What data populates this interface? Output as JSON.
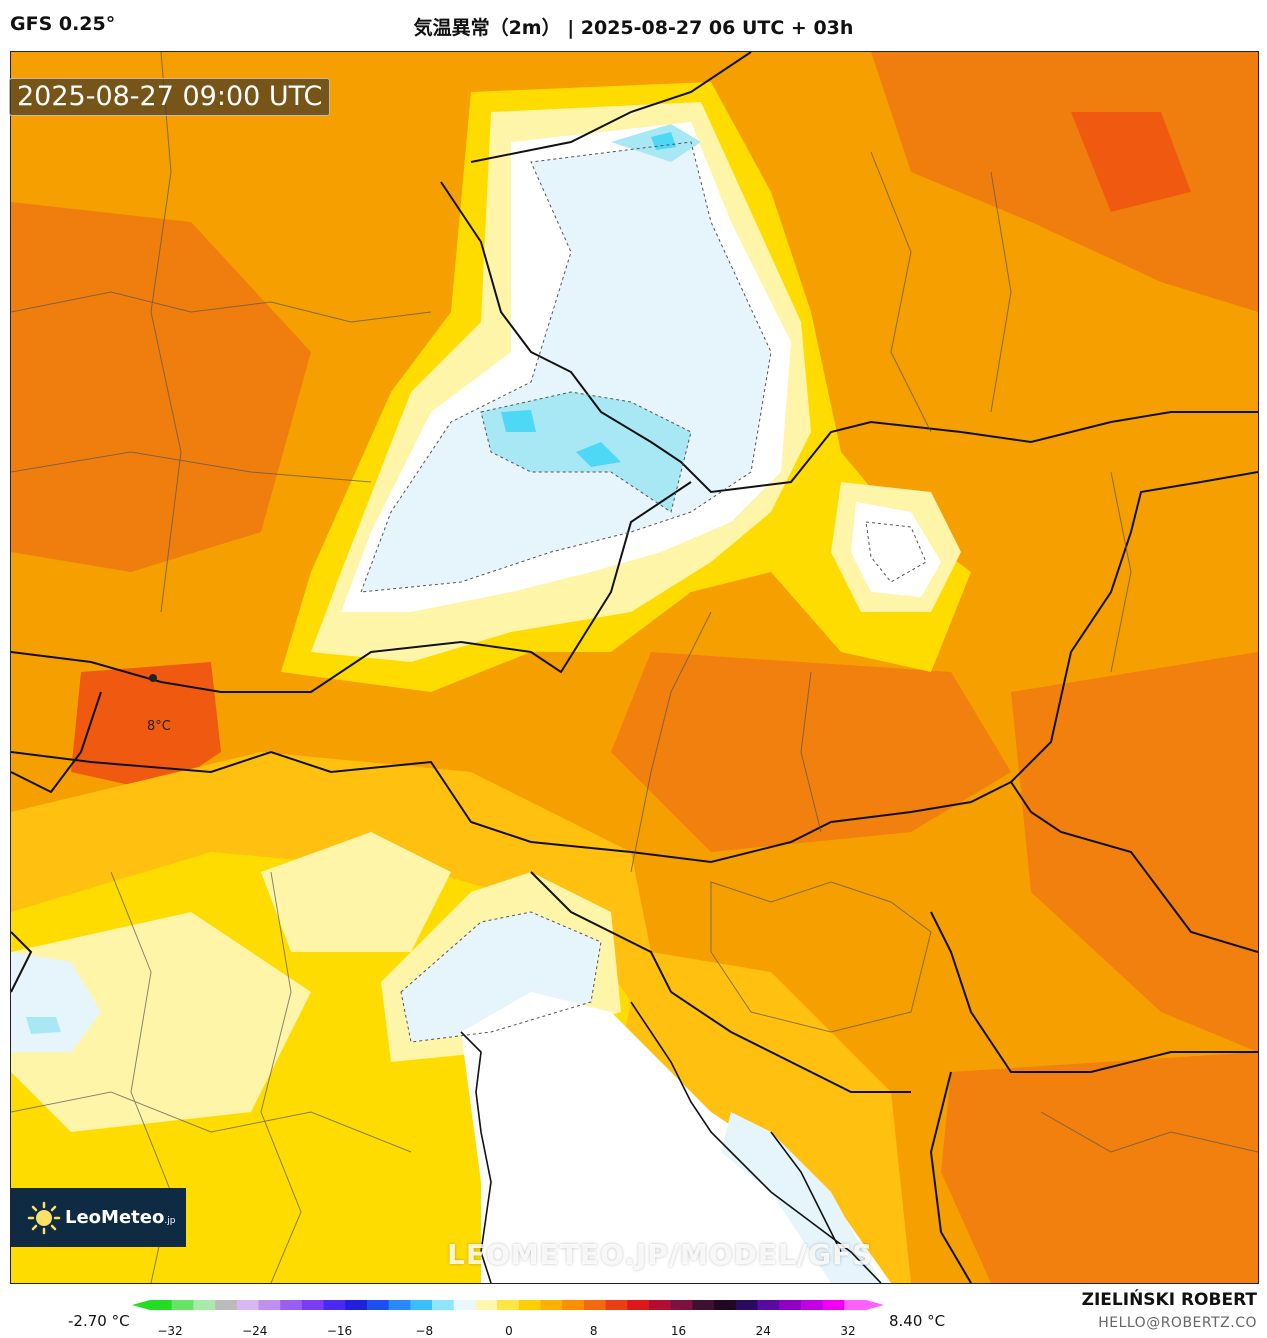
{
  "header": {
    "model": "GFS 0.25°",
    "title": "気温異常（2m）  | 2025-08-27 06 UTC + 03h"
  },
  "map": {
    "valid_time": "2025-08-27 09:00 UTC",
    "point_label": "8°C",
    "watermark": "LEOMETEO.JP/MODEL/GFS",
    "logo": {
      "name": "LeoMeteo",
      "suffix": ".jp",
      "icon": "sun-icon"
    },
    "colors": {
      "deep_orange": "#f07a10",
      "orange": "#f5a000",
      "light_orange": "#ffc010",
      "yellow": "#ffdc00",
      "pale_yellow": "#fff5a8",
      "near_zero": "#ffffff",
      "pale_blue": "#e6f4fb",
      "light_blue": "#a8e8f5",
      "cyan": "#4ed8f5",
      "red_orange": "#f05a10",
      "sea": "#ffffff"
    }
  },
  "legend": {
    "min_label": "-2.70 °C",
    "max_label": "8.40 °C",
    "ticks": [
      "−32",
      "−24",
      "−16",
      "−8",
      "0",
      "8",
      "16",
      "24",
      "32"
    ],
    "colors": [
      "#22dd22",
      "#66e466",
      "#a8eba8",
      "#bbbbbb",
      "#d8b8f0",
      "#c090f0",
      "#9a5ff0",
      "#7a3df0",
      "#4a2af0",
      "#2020e0",
      "#1a50f0",
      "#2a8af5",
      "#3ac0f8",
      "#8fe6fa",
      "#e8f8fc",
      "#fff6b0",
      "#ffe640",
      "#ffd000",
      "#ffb000",
      "#f89000",
      "#f06a10",
      "#e84015",
      "#d81a1a",
      "#b01030",
      "#801040",
      "#401030",
      "#200820",
      "#2a0a60",
      "#5a0aa0",
      "#9000c0",
      "#c000e0",
      "#f000f0",
      "#ff60ff"
    ]
  },
  "footer": {
    "author": "ZIELIŃSKI ROBERT",
    "email": "HELLO@ROBERTZ.CO"
  }
}
